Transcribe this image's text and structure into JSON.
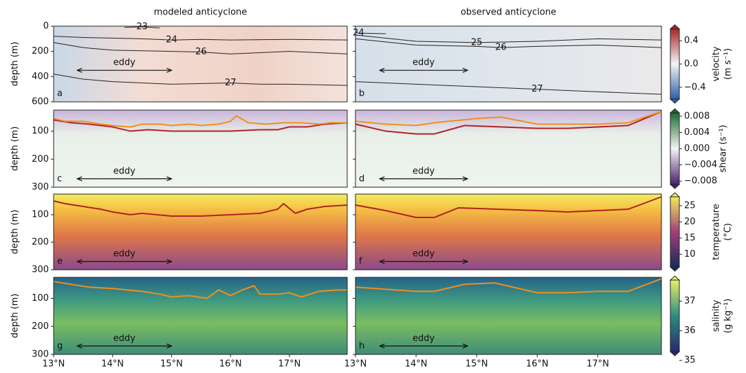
{
  "chart_data": [
    {
      "type": "section",
      "title": "modeled anticyclone",
      "panel_label": "a",
      "ylabel": "depth (m)",
      "annotation": "eddy",
      "xlim": [
        13,
        17.98
      ],
      "ylim": [
        0,
        600
      ],
      "yticks": [
        0,
        200,
        400,
        600
      ],
      "contours": [
        {
          "level": 23,
          "x": [
            14.2,
            14.5,
            14.8
          ],
          "values": [
            10,
            5,
            15
          ]
        },
        {
          "level": 24,
          "x": [
            13,
            13.5,
            14,
            14.5,
            15,
            15.5,
            16,
            17,
            17.98
          ],
          "values": [
            80,
            90,
            95,
            100,
            110,
            105,
            110,
            105,
            110
          ]
        },
        {
          "level": 26,
          "x": [
            13,
            13.5,
            14,
            15,
            15.5,
            16,
            17,
            17.98
          ],
          "values": [
            130,
            170,
            190,
            200,
            205,
            220,
            200,
            220
          ]
        },
        {
          "level": 27,
          "x": [
            13,
            13.5,
            14,
            15,
            16,
            16.5,
            17,
            17.98
          ],
          "values": [
            380,
            420,
            440,
            460,
            450,
            460,
            460,
            470
          ]
        }
      ]
    },
    {
      "type": "section",
      "title": "observed anticyclone",
      "panel_label": "b",
      "annotation": "eddy",
      "xlim": [
        13,
        18.05
      ],
      "ylim": [
        0,
        600
      ],
      "yticks": [
        0,
        200,
        400,
        600
      ],
      "colorbar": {
        "label": "velocity",
        "unit": "(m s⁻¹)",
        "colors": [
          "#2b5fa8",
          "#f4f4f4",
          "#a8262a"
        ],
        "lim": [
          -0.65,
          0.65
        ],
        "ticks": [
          0.4,
          {
            "value": 0,
            "label": "0.0"
          },
          {
            "value": -0.4,
            "label": "−0.4"
          }
        ]
      },
      "contours": [
        {
          "level": 24,
          "x": [
            13,
            13.05,
            13.5
          ],
          "values": [
            50,
            55,
            60
          ]
        },
        {
          "level": 25,
          "x": [
            13,
            14,
            14.5,
            15,
            16,
            17,
            18.05
          ],
          "values": [
            70,
            120,
            125,
            130,
            120,
            100,
            110
          ]
        },
        {
          "level": 26,
          "x": [
            13,
            14,
            15,
            15.4,
            16,
            17,
            18.05
          ],
          "values": [
            100,
            150,
            160,
            170,
            160,
            150,
            170
          ]
        },
        {
          "level": 27,
          "x": [
            13,
            14,
            15,
            16,
            17,
            17.5,
            18.05
          ],
          "values": [
            440,
            460,
            480,
            500,
            520,
            530,
            540
          ]
        }
      ]
    },
    {
      "type": "section",
      "panel_label": "c",
      "ylabel": "depth (m)",
      "annotation": "eddy",
      "xlim": [
        13,
        17.98
      ],
      "ylim": [
        25,
        300
      ],
      "yticks": [
        100,
        200,
        300
      ],
      "lines": [
        {
          "color": "#b22222",
          "x": [
            13,
            13.3,
            13.6,
            14,
            14.3,
            14.6,
            15,
            15.5,
            16,
            16.5,
            16.8,
            17,
            17.3,
            17.6,
            17.98
          ],
          "values": [
            60,
            70,
            75,
            85,
            100,
            95,
            100,
            100,
            100,
            95,
            95,
            85,
            85,
            75,
            70
          ]
        },
        {
          "color": "#f28e1c",
          "x": [
            13,
            13.2,
            13.5,
            13.8,
            14,
            14.3,
            14.5,
            14.8,
            15,
            15.3,
            15.5,
            15.8,
            16,
            16.1,
            16.3,
            16.6,
            16.9,
            17.2,
            17.5,
            17.7,
            17.98
          ],
          "values": [
            55,
            65,
            65,
            75,
            80,
            85,
            75,
            75,
            80,
            75,
            80,
            75,
            65,
            45,
            70,
            75,
            70,
            70,
            75,
            70,
            70
          ]
        }
      ]
    },
    {
      "type": "section",
      "panel_label": "d",
      "annotation": "eddy",
      "xlim": [
        13,
        18.05
      ],
      "ylim": [
        25,
        300
      ],
      "yticks": [
        100,
        200,
        300
      ],
      "colorbar": {
        "label": "shear (s⁻¹)",
        "colors": [
          "#4b1e6b",
          "#f4f4f4",
          "#1b6a2e"
        ],
        "lim": [
          -0.0095,
          0.0095
        ],
        "ticks": [
          0.008,
          0.004,
          {
            "value": 0,
            "label": "0.000"
          },
          {
            "value": -0.004,
            "label": "−0.004"
          },
          {
            "value": -0.008,
            "label": "−0.008"
          }
        ]
      },
      "lines": [
        {
          "color": "#b22222",
          "x": [
            13,
            13.5,
            14,
            14.3,
            14.8,
            16,
            16.5,
            17.5,
            18.05
          ],
          "values": [
            75,
            100,
            110,
            110,
            80,
            90,
            90,
            80,
            30
          ]
        },
        {
          "color": "#f28e1c",
          "x": [
            13,
            13.5,
            14,
            14.3,
            15,
            15.4,
            16,
            16.4,
            17,
            17.5,
            18.05
          ],
          "values": [
            65,
            75,
            80,
            70,
            55,
            50,
            75,
            75,
            75,
            70,
            30
          ]
        }
      ]
    },
    {
      "type": "section",
      "panel_label": "e",
      "ylabel": "depth (m)",
      "annotation": "eddy",
      "xlim": [
        13,
        17.98
      ],
      "ylim": [
        25,
        300
      ],
      "yticks": [
        100,
        200,
        300
      ],
      "lines": [
        {
          "color": "#b22222",
          "x": [
            13,
            13.2,
            13.5,
            13.8,
            14,
            14.3,
            14.5,
            15,
            15.5,
            16,
            16.5,
            16.8,
            16.9,
            17.1,
            17.3,
            17.6,
            17.98
          ],
          "values": [
            50,
            60,
            70,
            80,
            90,
            100,
            95,
            105,
            105,
            100,
            95,
            80,
            60,
            95,
            80,
            70,
            65
          ]
        }
      ]
    },
    {
      "type": "section",
      "panel_label": "f",
      "annotation": "eddy",
      "xlim": [
        13,
        18.05
      ],
      "ylim": [
        25,
        300
      ],
      "yticks": [
        100,
        200,
        300
      ],
      "colorbar": {
        "label": "temperature",
        "unit": "(°C)",
        "colors": [
          "#1c2a5a",
          "#a0407a",
          "#f2e95a"
        ],
        "lim": [
          5.2,
          28.6
        ],
        "ticks": [
          10,
          15,
          20,
          25
        ]
      },
      "lines": [
        {
          "color": "#b22222",
          "x": [
            13,
            13.5,
            14,
            14.3,
            14.7,
            16,
            16.5,
            17,
            17.5,
            18.05
          ],
          "values": [
            65,
            85,
            110,
            110,
            75,
            85,
            90,
            85,
            80,
            35
          ]
        }
      ]
    },
    {
      "type": "section",
      "panel_label": "g",
      "ylabel": "depth (m)",
      "annotation": "eddy",
      "xlim": [
        13,
        17.98
      ],
      "ylim": [
        25,
        300
      ],
      "yticks": [
        100,
        200,
        300
      ],
      "xticks": [
        {
          "value": 13,
          "label": "13°N"
        },
        {
          "value": 14,
          "label": "14°N"
        },
        {
          "value": 15,
          "label": "15°N"
        },
        {
          "value": 16,
          "label": "16°N"
        },
        {
          "value": 17,
          "label": "17°N"
        }
      ],
      "lines": [
        {
          "color": "#f28e1c",
          "x": [
            13,
            13.3,
            13.6,
            14,
            14.5,
            14.8,
            15,
            15.3,
            15.6,
            15.8,
            16,
            16.2,
            16.4,
            16.5,
            16.8,
            17,
            17.2,
            17.5,
            17.8,
            17.98
          ],
          "values": [
            40,
            50,
            60,
            65,
            75,
            85,
            95,
            90,
            100,
            70,
            90,
            70,
            55,
            85,
            85,
            80,
            95,
            75,
            70,
            70
          ]
        }
      ]
    },
    {
      "type": "section",
      "panel_label": "h",
      "annotation": "eddy",
      "xlim": [
        13,
        18.05
      ],
      "ylim": [
        25,
        300
      ],
      "yticks": [
        100,
        200,
        300
      ],
      "xticks": [
        {
          "value": 13,
          "label": "13°N"
        },
        {
          "value": 14,
          "label": "14°N"
        },
        {
          "value": 15,
          "label": "15°N"
        },
        {
          "value": 16,
          "label": "16°N"
        },
        {
          "value": 17,
          "label": "17°N"
        }
      ],
      "colorbar": {
        "label": "salinity",
        "unit": "(g kg⁻¹)",
        "colors": [
          "#262a6e",
          "#2e8c7e",
          "#e6ef6a"
        ],
        "lim": [
          35.2,
          37.8
        ],
        "ticks": [
          35,
          36,
          37
        ]
      },
      "lines": [
        {
          "color": "#f28e1c",
          "x": [
            13,
            14,
            14.3,
            14.8,
            15.3,
            16,
            16.5,
            17,
            17.5,
            18.05
          ],
          "values": [
            60,
            75,
            75,
            50,
            45,
            80,
            80,
            75,
            75,
            30
          ]
        }
      ]
    }
  ]
}
